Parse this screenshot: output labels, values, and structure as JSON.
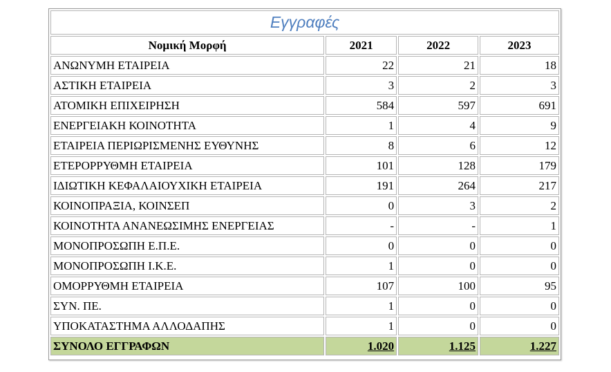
{
  "table": {
    "title": "Εγγραφές",
    "headers": [
      "Νομική Μορφή",
      "2021",
      "2022",
      "2023"
    ],
    "rows": [
      {
        "name": "ΑΝΩΝΥΜΗ ΕΤΑΙΡΕΙΑ",
        "v2021": "22",
        "v2022": "21",
        "v2023": "18"
      },
      {
        "name": "ΑΣΤΙΚΗ ΕΤΑΙΡΕΙΑ",
        "v2021": "3",
        "v2022": "2",
        "v2023": "3"
      },
      {
        "name": "ΑΤΟΜΙΚΗ ΕΠΙΧΕΙΡΗΣΗ",
        "v2021": "584",
        "v2022": "597",
        "v2023": "691"
      },
      {
        "name": "ΕΝΕΡΓΕΙΑΚΗ ΚΟΙΝΟΤΗΤΑ",
        "v2021": "1",
        "v2022": "4",
        "v2023": "9"
      },
      {
        "name": "ΕΤΑΙΡΕΙΑ ΠΕΡΙΩΡΙΣΜΕΝΗΣ ΕΥΘΥΝΗΣ",
        "v2021": "8",
        "v2022": "6",
        "v2023": "12"
      },
      {
        "name": "ΕΤΕΡΟΡΡΥΘΜΗ ΕΤΑΙΡΕΙΑ",
        "v2021": "101",
        "v2022": "128",
        "v2023": "179"
      },
      {
        "name": "ΙΔΙΩΤΙΚΗ ΚΕΦΑΛΑΙΟΥΧΙΚΗ ΕΤΑΙΡΕΙΑ",
        "v2021": "191",
        "v2022": "264",
        "v2023": "217"
      },
      {
        "name": "ΚΟΙΝΟΠΡΑΞΙΑ, ΚΟΙΝΣΕΠ",
        "v2021": "0",
        "v2022": "3",
        "v2023": "2"
      },
      {
        "name": "ΚΟΙΝΟΤΗΤΑ ΑΝΑΝΕΩΣΙΜΗΣ ΕΝΕΡΓΕΙΑΣ",
        "v2021": "-",
        "v2022": "-",
        "v2023": "1"
      },
      {
        "name": "ΜΟΝΟΠΡΟΣΩΠΗ Ε.Π.Ε.",
        "v2021": "0",
        "v2022": "0",
        "v2023": "0"
      },
      {
        "name": "ΜΟΝΟΠΡΟΣΩΠΗ Ι.Κ.Ε.",
        "v2021": "1",
        "v2022": "0",
        "v2023": "0"
      },
      {
        "name": "ΟΜΟΡΡΥΘΜΗ ΕΤΑΙΡΕΙΑ",
        "v2021": "107",
        "v2022": "100",
        "v2023": "95"
      },
      {
        "name": "ΣΥΝ. ΠΕ.",
        "v2021": "1",
        "v2022": "0",
        "v2023": "0"
      },
      {
        "name": "ΥΠΟΚΑΤΑΣΤΗΜΑ ΑΛΛΟΔΑΠΗΣ",
        "v2021": "1",
        "v2022": "0",
        "v2023": "0"
      }
    ],
    "total": {
      "name": "ΣΥΝΟΛΟ ΕΓΓΡΑΦΩΝ",
      "v2021": "1.020",
      "v2022": "1.125",
      "v2023": "1.227"
    }
  },
  "colors": {
    "title_text": "#4f7fbf",
    "total_row_background": "#c4d79b",
    "cell_border": "#b5b5b5"
  }
}
